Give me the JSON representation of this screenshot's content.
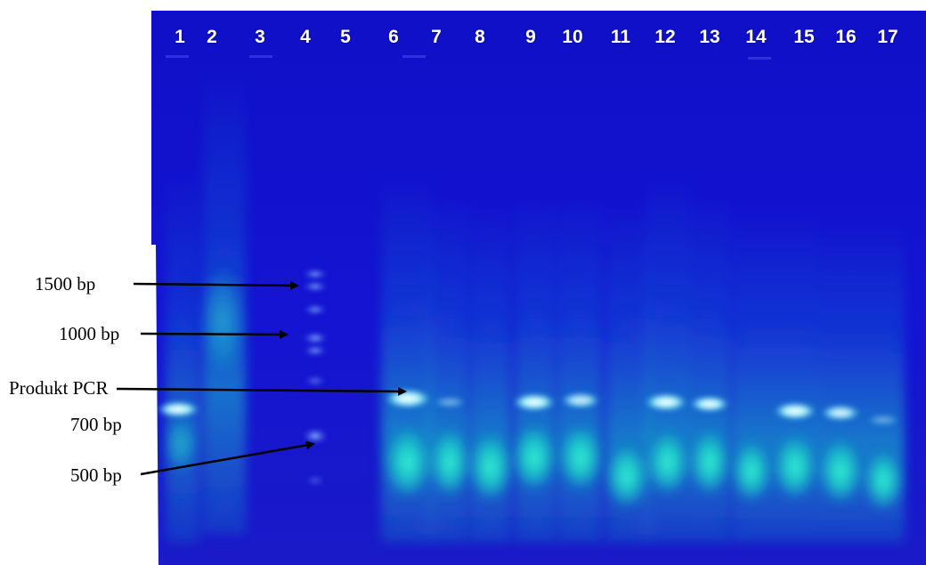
{
  "gel": {
    "lanes": [
      "1",
      "2",
      "3",
      "4",
      "5",
      "6",
      "7",
      "8",
      "9",
      "10",
      "11",
      "12",
      "13",
      "14",
      "15",
      "16",
      "17"
    ],
    "background_color": "#1414d2",
    "band_color": "#9ff7ff",
    "smear_color": "#19f5c8"
  },
  "annotations": {
    "marker_1500": "1500 bp",
    "marker_1000": "1000 bp",
    "pcr_product": "Produkt PCR",
    "marker_700": "700 bp",
    "marker_500": "500 bp"
  }
}
